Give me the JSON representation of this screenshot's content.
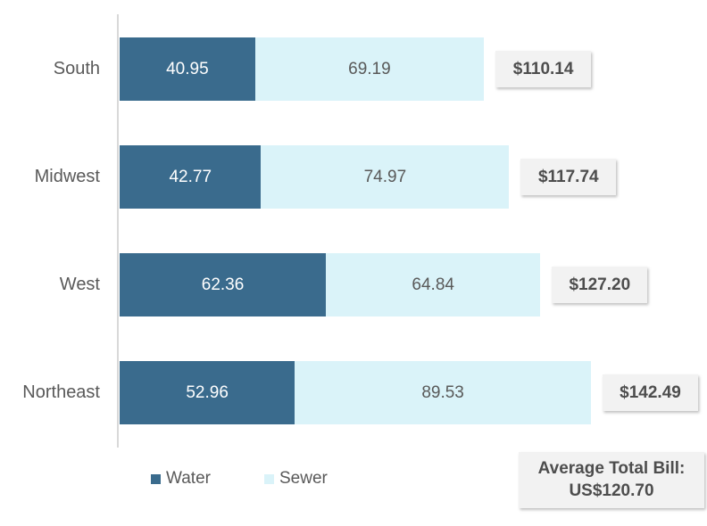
{
  "chart_data": {
    "type": "bar",
    "orientation": "horizontal",
    "stacked": true,
    "grid": false,
    "legend_position": "bottom",
    "categories": [
      "South",
      "Midwest",
      "West",
      "Northeast"
    ],
    "series": [
      {
        "name": "Water",
        "color": "#3A6B8D",
        "text_color": "#FFFFFF",
        "values": [
          40.95,
          42.77,
          62.36,
          52.96
        ]
      },
      {
        "name": "Sewer",
        "color": "#DAF3F9",
        "text_color": "#595959",
        "values": [
          69.19,
          74.97,
          64.84,
          89.53
        ]
      }
    ],
    "totals": [
      110.14,
      117.74,
      127.2,
      142.49
    ],
    "total_prefix": "$",
    "xlim": [
      0,
      142.49
    ],
    "annotation": {
      "line1": "Average Total Bill:",
      "line2": "US$120.70"
    }
  },
  "colors": {
    "axis_line": "#D9D9D9",
    "category_label_text": "#595959",
    "value_on_dark": "#FFFFFF",
    "value_on_light": "#595959",
    "total_box_background": "#F2F2F2",
    "total_box_text": "#4D4D4D",
    "background": "#FFFFFF"
  }
}
